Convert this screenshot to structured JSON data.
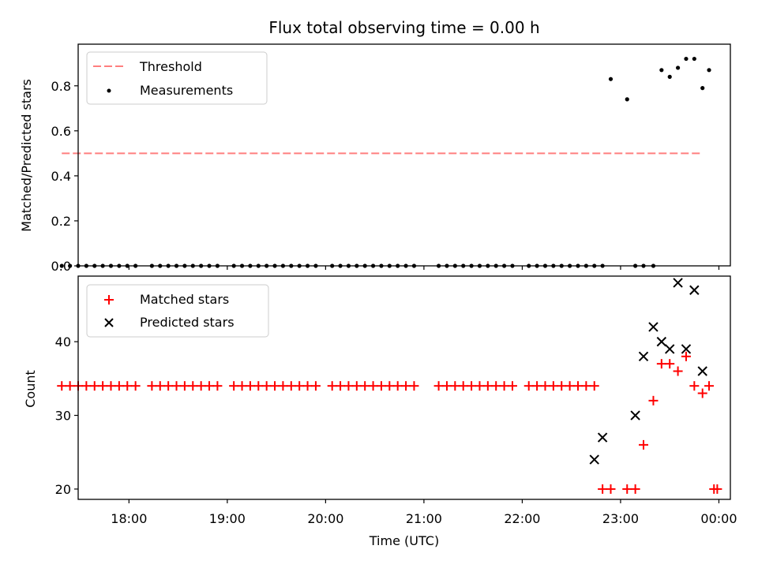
{
  "figure": {
    "title": "Flux total observing time = 0.00 h",
    "xlabel": "Time (UTC)",
    "x_tick_labels": [
      "18:00",
      "19:00",
      "20:00",
      "21:00",
      "22:00",
      "23:00",
      "00:00"
    ]
  },
  "chart_data": [
    {
      "type": "scatter",
      "title": "Flux total observing time = 0.00 h",
      "xlabel": "",
      "ylabel": "Matched/Predicted stars",
      "xlim": [
        "17:29",
        "00:07"
      ],
      "ylim": [
        0,
        0.985
      ],
      "y_ticks": [
        0.0,
        0.2,
        0.4,
        0.6,
        0.8
      ],
      "y_tick_labels": [
        "0.0",
        "0.2",
        "0.4",
        "0.6",
        "0.8"
      ],
      "legend_position": "top-left",
      "threshold": {
        "name": "Threshold",
        "value": 0.5,
        "x_range": [
          "17:19",
          "23:50"
        ],
        "color": "#ff7f7f",
        "style": "dashed"
      },
      "series": [
        {
          "name": "Measurements",
          "marker": "dot",
          "color": "#000000",
          "x": [
            "17:19",
            "17:24",
            "17:29",
            "17:34",
            "17:39",
            "17:44",
            "17:49",
            "17:54",
            "17:59",
            "18:04",
            "18:14",
            "18:19",
            "18:24",
            "18:29",
            "18:34",
            "18:39",
            "18:44",
            "18:49",
            "18:54",
            "19:04",
            "19:09",
            "19:14",
            "19:19",
            "19:24",
            "19:29",
            "19:34",
            "19:39",
            "19:44",
            "19:49",
            "19:54",
            "20:04",
            "20:09",
            "20:14",
            "20:19",
            "20:24",
            "20:29",
            "20:34",
            "20:39",
            "20:44",
            "20:49",
            "20:54",
            "21:09",
            "21:14",
            "21:19",
            "21:24",
            "21:29",
            "21:34",
            "21:39",
            "21:44",
            "21:49",
            "21:54",
            "22:04",
            "22:09",
            "22:14",
            "22:19",
            "22:24",
            "22:29",
            "22:34",
            "22:39",
            "22:44",
            "22:49",
            "22:54",
            "23:04",
            "23:09",
            "23:14",
            "23:20",
            "23:25",
            "23:30",
            "23:35",
            "23:40",
            "23:45",
            "23:50",
            "23:54"
          ],
          "y": [
            0,
            0,
            0,
            0,
            0,
            0,
            0,
            0,
            0,
            0,
            0,
            0,
            0,
            0,
            0,
            0,
            0,
            0,
            0,
            0,
            0,
            0,
            0,
            0,
            0,
            0,
            0,
            0,
            0,
            0,
            0,
            0,
            0,
            0,
            0,
            0,
            0,
            0,
            0,
            0,
            0,
            0,
            0,
            0,
            0,
            0,
            0,
            0,
            0,
            0,
            0,
            0,
            0,
            0,
            0,
            0,
            0,
            0,
            0,
            0,
            0,
            0.83,
            0.74,
            0,
            0,
            0,
            0.87,
            0.84,
            0.88,
            0.92,
            0.92,
            0.79,
            0.87
          ]
        }
      ]
    },
    {
      "type": "scatter",
      "title": "",
      "xlabel": "Time (UTC)",
      "ylabel": "Count",
      "xlim": [
        "17:29",
        "00:07"
      ],
      "ylim": [
        18.6,
        48.9
      ],
      "y_ticks": [
        20,
        30,
        40
      ],
      "y_tick_labels": [
        "20",
        "30",
        "40"
      ],
      "legend_position": "top-left",
      "series": [
        {
          "name": "Matched stars",
          "marker": "plus",
          "color": "#ff0000",
          "x": [
            "17:19",
            "17:24",
            "17:29",
            "17:34",
            "17:39",
            "17:44",
            "17:49",
            "17:54",
            "17:59",
            "18:04",
            "18:14",
            "18:19",
            "18:24",
            "18:29",
            "18:34",
            "18:39",
            "18:44",
            "18:49",
            "18:54",
            "19:04",
            "19:09",
            "19:14",
            "19:19",
            "19:24",
            "19:29",
            "19:34",
            "19:39",
            "19:44",
            "19:49",
            "19:54",
            "20:04",
            "20:09",
            "20:14",
            "20:19",
            "20:24",
            "20:29",
            "20:34",
            "20:39",
            "20:44",
            "20:49",
            "20:54",
            "21:09",
            "21:14",
            "21:19",
            "21:24",
            "21:29",
            "21:34",
            "21:39",
            "21:44",
            "21:49",
            "21:54",
            "22:04",
            "22:09",
            "22:14",
            "22:19",
            "22:24",
            "22:29",
            "22:34",
            "22:39",
            "22:44",
            "22:49",
            "22:54",
            "23:04",
            "23:09",
            "23:14",
            "23:20",
            "23:25",
            "23:30",
            "23:35",
            "23:40",
            "23:45",
            "23:50",
            "23:54",
            "23:57",
            "23:59"
          ],
          "y": [
            34,
            34,
            34,
            34,
            34,
            34,
            34,
            34,
            34,
            34,
            34,
            34,
            34,
            34,
            34,
            34,
            34,
            34,
            34,
            34,
            34,
            34,
            34,
            34,
            34,
            34,
            34,
            34,
            34,
            34,
            34,
            34,
            34,
            34,
            34,
            34,
            34,
            34,
            34,
            34,
            34,
            34,
            34,
            34,
            34,
            34,
            34,
            34,
            34,
            34,
            34,
            34,
            34,
            34,
            34,
            34,
            34,
            34,
            34,
            34,
            20,
            20,
            20,
            20,
            26,
            32,
            37,
            37,
            36,
            38,
            34,
            33,
            34,
            20,
            20
          ]
        },
        {
          "name": "Predicted stars",
          "marker": "x",
          "color": "#000000",
          "x": [
            "22:44",
            "22:49",
            "23:09",
            "23:14",
            "23:20",
            "23:25",
            "23:30",
            "23:35",
            "23:40",
            "23:45",
            "23:50"
          ],
          "y": [
            24,
            27,
            30,
            38,
            42,
            40,
            39,
            48,
            39,
            47,
            36
          ]
        }
      ]
    }
  ]
}
